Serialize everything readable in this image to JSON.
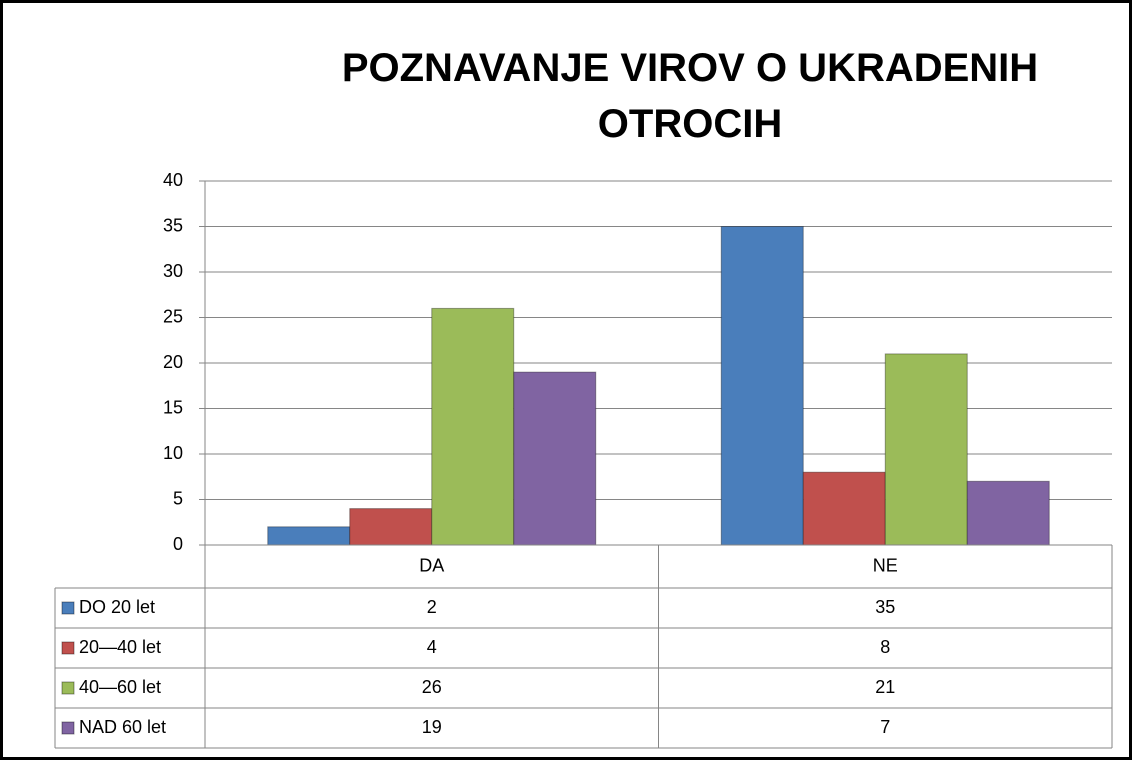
{
  "chart_data": {
    "type": "bar",
    "title": "POZNAVANJE VIROV O UKRADENIH OTROCIH",
    "categories": [
      "DA",
      "NE"
    ],
    "series": [
      {
        "name": "DO 20 let",
        "color": "#4a7ebb",
        "values": [
          2,
          35
        ]
      },
      {
        "name": "20—40 let",
        "color": "#c0504d",
        "values": [
          4,
          8
        ]
      },
      {
        "name": "40—60 let",
        "color": "#9bbb59",
        "values": [
          26,
          21
        ]
      },
      {
        "name": "NAD 60 let",
        "color": "#8064a2",
        "values": [
          19,
          7
        ]
      }
    ],
    "ylim": [
      0,
      40
    ],
    "yticks": [
      0,
      5,
      10,
      15,
      20,
      25,
      30,
      35,
      40
    ],
    "grid": true,
    "data_table": true
  }
}
